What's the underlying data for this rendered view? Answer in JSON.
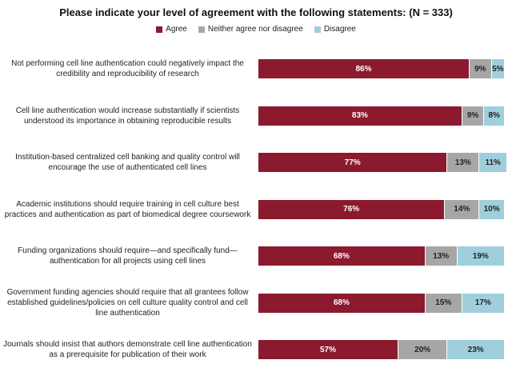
{
  "chart_data": {
    "type": "bar",
    "orientation": "horizontal",
    "stacked": true,
    "title": "Please indicate your level of agreement with the following statements: (N = 333)",
    "legend_position": "top",
    "grid": false,
    "xlim": [
      0,
      100
    ],
    "categories": [
      "Not performing cell line authentication could negatively impact the credibility and reproducibility of research",
      "Cell line authentication would increase substantially if scientists understood its importance in obtaining reproducible results",
      "Institution-based centralized cell banking and quality control will encourage the use of authenticated cell lines",
      "Academic institutions should require training in cell culture best practices and authentication as part of biomedical degree coursework",
      "Funding organizations should require—and specifically fund—authentication for all projects using cell lines",
      "Government funding agencies should require that all grantees follow established guidelines/policies on cell culture quality control and cell line authentication",
      "Journals should insist that authors demonstrate cell line authentication as a prerequisite for publication of their work"
    ],
    "category_lines": [
      [
        "Not performing cell line authentication could negatively impact the",
        "credibility and reproducibility of research"
      ],
      [
        "Cell line authentication would increase substantially if scientists",
        "understood its importance in obtaining reproducible results"
      ],
      [
        "Institution-based centralized cell banking and quality control will",
        "encourage the use of authenticated cell lines"
      ],
      [
        "Academic institutions should require training in cell culture best",
        "practices and authentication as part of biomedical degree coursework"
      ],
      [
        "Funding organizations should require—and specifically fund—",
        "authentication for all projects using cell lines"
      ],
      [
        "Government funding agencies should require that all grantees follow",
        "established guidelines/policies on cell culture quality control and cell",
        "line authentication"
      ],
      [
        "Journals should insist that authors demonstrate cell line authentication",
        "as a prerequisite for publication of their work"
      ]
    ],
    "series": [
      {
        "name": "Agree",
        "color": "#8b1a2e",
        "values": [
          86,
          83,
          77,
          76,
          68,
          68,
          57
        ]
      },
      {
        "name": "Neither agree nor disagree",
        "color": "#a6a6a6",
        "values": [
          9,
          9,
          13,
          14,
          13,
          15,
          20
        ]
      },
      {
        "name": "Disagree",
        "color": "#9fcfdc",
        "values": [
          5,
          8,
          11,
          10,
          19,
          17,
          23
        ]
      }
    ],
    "value_suffix": "%"
  }
}
